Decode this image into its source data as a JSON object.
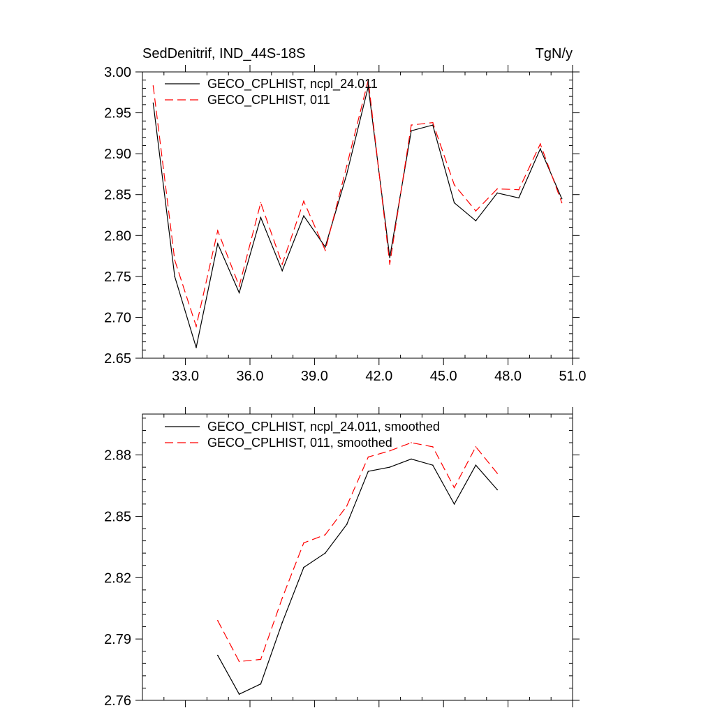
{
  "header": {
    "left_title": "SedDenitrif, IND_44S-18S",
    "right_title": "TgN/y"
  },
  "colors": {
    "series_a": "#000000",
    "series_b": "#ff0000",
    "axes": "#000000",
    "background": "#ffffff"
  },
  "chart_data": [
    {
      "type": "line",
      "title": "SedDenitrif, IND_44S-18S",
      "units": "TgN/y",
      "xlabel": "",
      "ylabel": "",
      "xlim": [
        31.0,
        51.0
      ],
      "ylim": [
        2.65,
        3.0
      ],
      "xticks": [
        33.0,
        36.0,
        39.0,
        42.0,
        45.0,
        48.0,
        51.0
      ],
      "xtick_labels": [
        "33.0",
        "36.0",
        "39.0",
        "42.0",
        "45.0",
        "48.0",
        "51.0"
      ],
      "yticks": [
        2.65,
        2.7,
        2.75,
        2.8,
        2.85,
        2.9,
        2.95,
        3.0
      ],
      "ytick_labels": [
        "2.65",
        "2.70",
        "2.75",
        "2.80",
        "2.85",
        "2.90",
        "2.95",
        "3.00"
      ],
      "grid": false,
      "legend_position": "top-left",
      "x": [
        31.5,
        32.5,
        33.5,
        34.5,
        35.5,
        36.5,
        37.5,
        38.5,
        39.5,
        40.5,
        41.5,
        42.5,
        43.5,
        44.5,
        45.5,
        46.5,
        47.5,
        48.5,
        49.5,
        50.5
      ],
      "series": [
        {
          "name": "GECO_CPLHIST, ncpl_24.011",
          "style": "solid",
          "values": [
            2.962,
            2.75,
            2.663,
            2.79,
            2.73,
            2.822,
            2.757,
            2.824,
            2.786,
            2.875,
            2.982,
            2.773,
            2.928,
            2.935,
            2.84,
            2.818,
            2.852,
            2.846,
            2.906,
            2.845
          ]
        },
        {
          "name": "GECO_CPLHIST, 011",
          "style": "dashed",
          "values": [
            2.983,
            2.77,
            2.689,
            2.806,
            2.738,
            2.84,
            2.765,
            2.842,
            2.782,
            2.885,
            2.99,
            2.765,
            2.935,
            2.938,
            2.862,
            2.83,
            2.857,
            2.856,
            2.912,
            2.84
          ]
        }
      ]
    },
    {
      "type": "line",
      "title": "",
      "xlabel": "",
      "ylabel": "",
      "xlim": [
        31.0,
        51.0
      ],
      "ylim": [
        2.76,
        2.9
      ],
      "xticks": [
        33.0,
        36.0,
        39.0,
        42.0,
        45.0,
        48.0,
        51.0
      ],
      "yticks": [
        2.76,
        2.79,
        2.82,
        2.85,
        2.88
      ],
      "ytick_labels": [
        "2.76",
        "2.79",
        "2.82",
        "2.85",
        "2.88"
      ],
      "grid": false,
      "legend_position": "top-left",
      "x": [
        34.5,
        35.5,
        36.5,
        37.5,
        38.5,
        39.5,
        40.5,
        41.5,
        42.5,
        43.5,
        44.5,
        45.5,
        46.5,
        47.5
      ],
      "series": [
        {
          "name": "GECO_CPLHIST, ncpl_24.011, smoothed",
          "style": "solid",
          "values": [
            2.782,
            2.763,
            2.768,
            2.798,
            2.825,
            2.832,
            2.846,
            2.872,
            2.874,
            2.878,
            2.875,
            2.856,
            2.875,
            2.863
          ]
        },
        {
          "name": "GECO_CPLHIST, 011, smoothed",
          "style": "dashed",
          "values": [
            2.799,
            2.779,
            2.78,
            2.81,
            2.837,
            2.841,
            2.855,
            2.879,
            2.882,
            2.886,
            2.884,
            2.864,
            2.884,
            2.871
          ]
        }
      ]
    }
  ]
}
